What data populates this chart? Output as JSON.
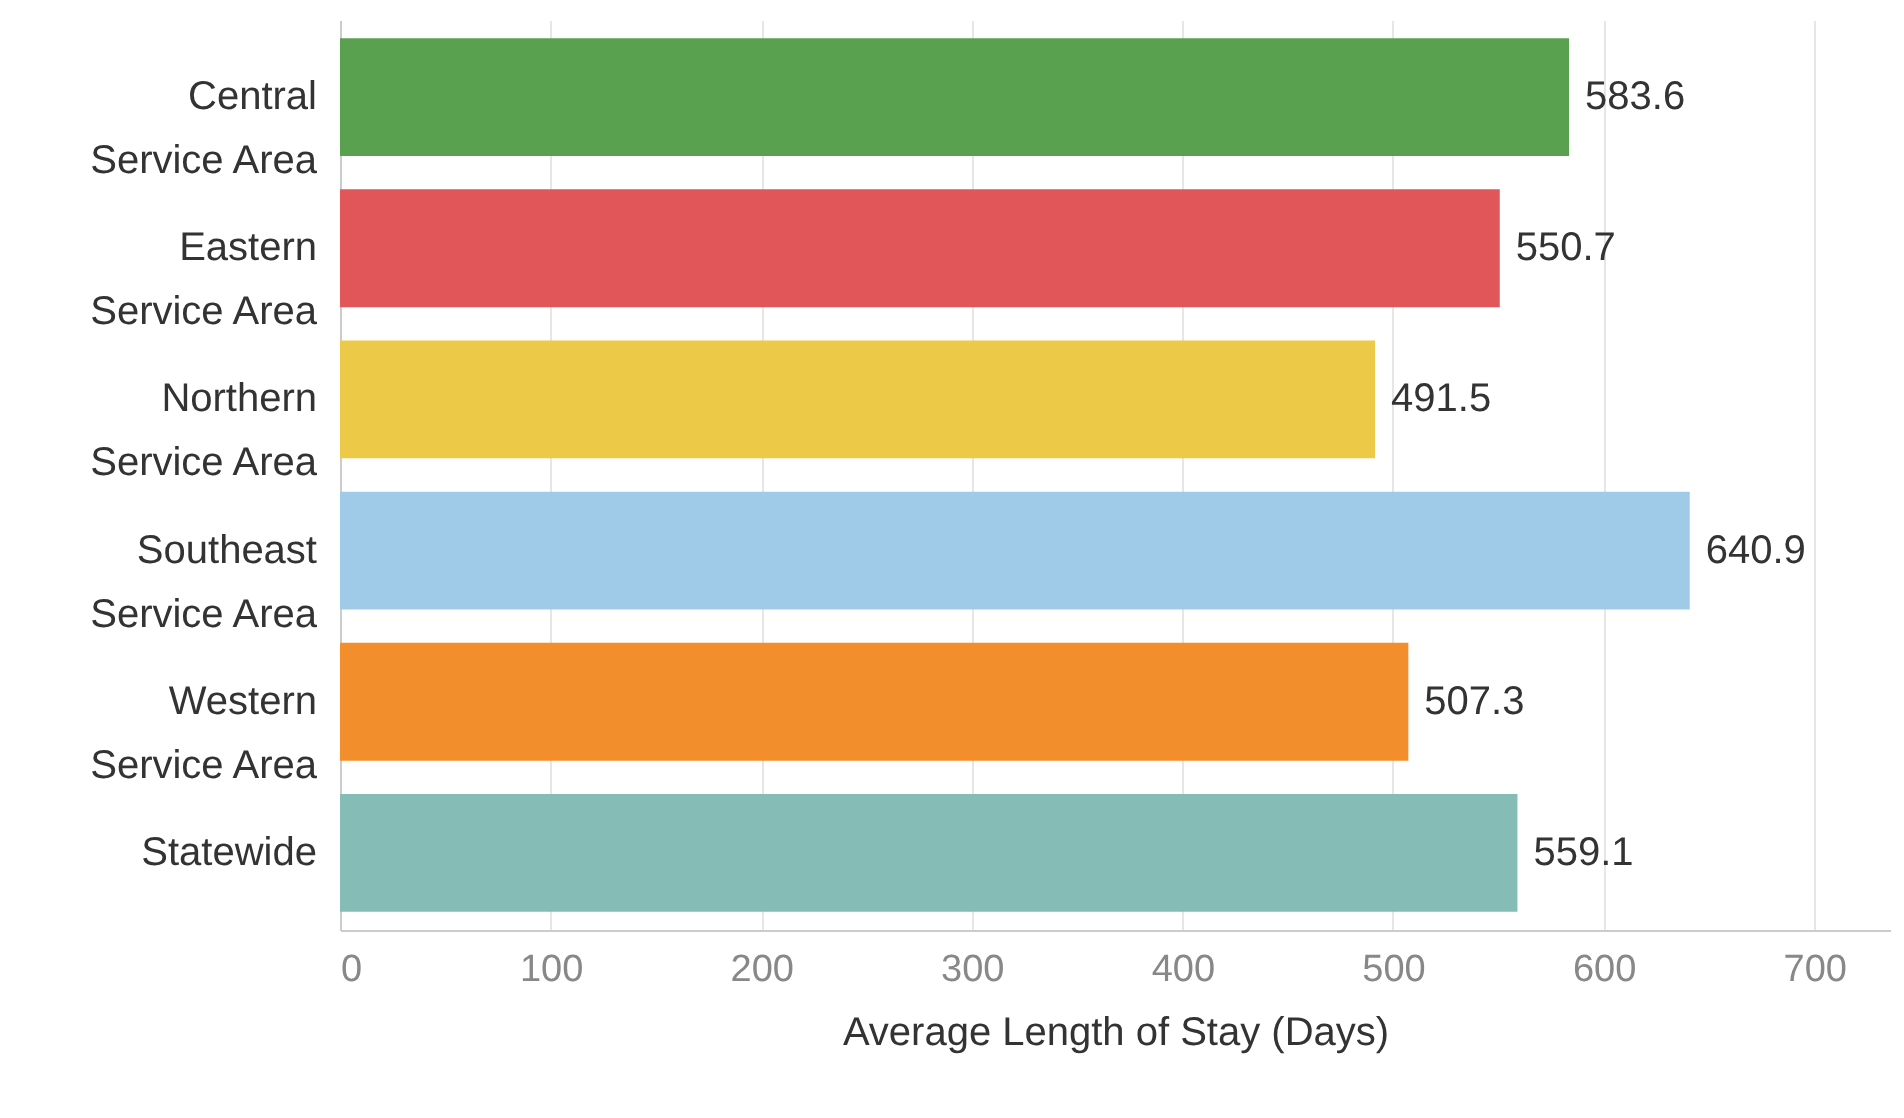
{
  "chart_data": {
    "type": "bar",
    "orientation": "horizontal",
    "categories": [
      "Central Service Area",
      "Eastern Service Area",
      "Northern Service Area",
      "Southeast Service Area",
      "Western Service Area",
      "Statewide"
    ],
    "values": [
      583.6,
      550.7,
      491.5,
      640.9,
      507.3,
      559.1
    ],
    "colors": [
      "#59a14f",
      "#e15759",
      "#edc948",
      "#a0cbe8",
      "#f28e2b",
      "#86bcb6"
    ],
    "xlabel": "Average Length of Stay (Days)",
    "xlim": [
      0,
      736
    ],
    "xticks": [
      0,
      100,
      200,
      300,
      400,
      500,
      600,
      700
    ],
    "grid": "x",
    "data_labels": true
  }
}
